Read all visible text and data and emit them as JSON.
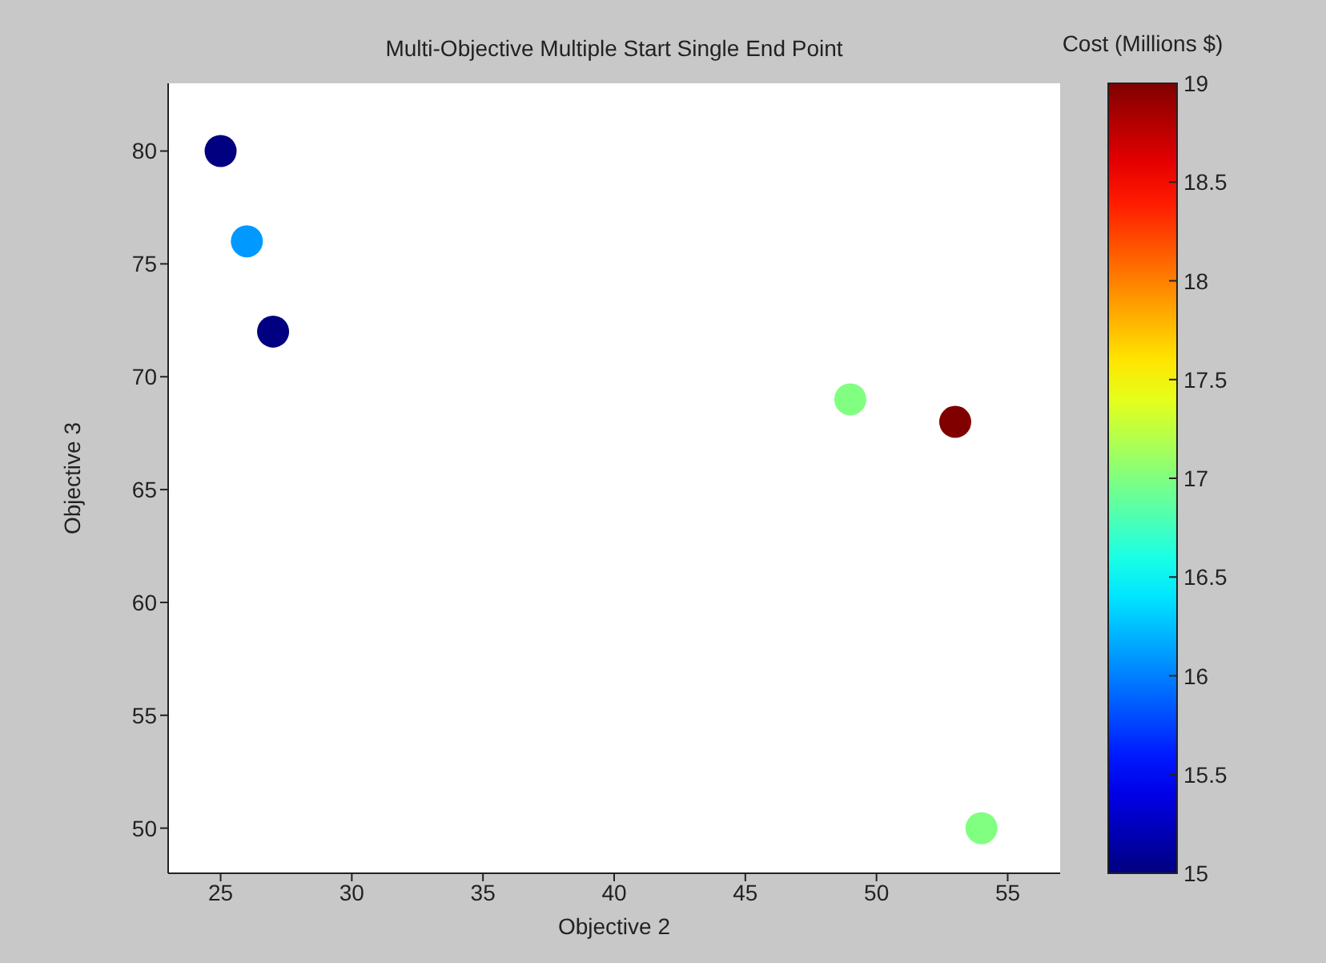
{
  "chart_data": {
    "type": "scatter",
    "title": "Multi-Objective Multiple Start Single End Point",
    "xlabel": "Objective 2",
    "ylabel": "Objective 3",
    "clabel": "Cost (Millions $)",
    "x": [
      25,
      26,
      27,
      49,
      53,
      54
    ],
    "values": [
      80,
      76,
      72,
      69,
      68,
      50
    ],
    "cvalues": [
      15,
      16.1,
      15,
      17,
      19,
      17
    ],
    "xlim": [
      23,
      57
    ],
    "xticks": [
      25,
      30,
      35,
      40,
      45,
      50,
      55
    ],
    "ylim": [
      48,
      83
    ],
    "yticks": [
      50,
      55,
      60,
      65,
      70,
      75,
      80
    ],
    "clim": [
      15,
      19
    ],
    "cticks": [
      15,
      15.5,
      16,
      16.5,
      17,
      17.5,
      18,
      18.5,
      19
    ],
    "marker": "circle"
  }
}
